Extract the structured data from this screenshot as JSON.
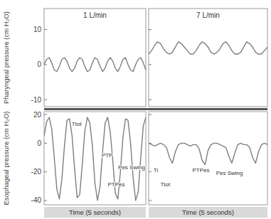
{
  "chart_data": [
    {
      "type": "line",
      "title": "1 L/min",
      "ylabel": "Pharyngeal pressure (cm H₂O)",
      "x": [
        0,
        0.125,
        0.25,
        0.375,
        0.5,
        0.625,
        0.75,
        0.875,
        1,
        1.125,
        1.25,
        1.375,
        1.5,
        1.625,
        1.75,
        1.875,
        2,
        2.125,
        2.25,
        2.375,
        2.5,
        2.625,
        2.75,
        2.875,
        3,
        3.125,
        3.25,
        3.375,
        3.5,
        3.625,
        3.75,
        3.875,
        4,
        4.125,
        4.25,
        4.375,
        4.5,
        4.625,
        4.75,
        4.875,
        5
      ],
      "series": [
        {
          "color": "#7f7f7f",
          "values": [
            0,
            1.5,
            2,
            0.5,
            -1.5,
            -2,
            -0.5,
            1.5,
            2,
            1,
            -1,
            -2,
            -1,
            1,
            2,
            1.5,
            -0.5,
            -2,
            -1.5,
            0.5,
            2,
            1.5,
            -0.5,
            -2,
            -1,
            1,
            2,
            1,
            -1,
            -2,
            -0.5,
            1.5,
            2,
            0,
            -1.5,
            -2,
            0,
            1.5,
            2,
            0.5,
            -1.5
          ]
        }
      ],
      "xlim": [
        0,
        5
      ],
      "ylim": [
        -12,
        16
      ],
      "yticks": [
        -10,
        0,
        10
      ],
      "tick_labels": "y"
    },
    {
      "type": "line",
      "title": "7 L/min",
      "x": [
        0,
        0.125,
        0.25,
        0.375,
        0.5,
        0.625,
        0.75,
        0.875,
        1,
        1.125,
        1.25,
        1.375,
        1.5,
        1.625,
        1.75,
        1.875,
        2,
        2.125,
        2.25,
        2.375,
        2.5,
        2.625,
        2.75,
        2.875,
        3,
        3.125,
        3.25,
        3.375,
        3.5,
        3.625,
        3.75,
        3.875,
        4,
        4.125,
        4.25,
        4.375,
        4.5,
        4.625,
        4.75,
        4.875,
        5
      ],
      "series": [
        {
          "color": "#7f7f7f",
          "values": [
            3,
            4,
            5.5,
            6.5,
            6,
            4.5,
            3.5,
            3,
            3.5,
            5,
            6.5,
            6,
            5,
            4,
            3,
            3,
            4,
            5.5,
            6.5,
            6,
            5,
            3.5,
            3,
            3.5,
            4.5,
            6,
            6.5,
            5.5,
            4,
            3,
            3,
            3.5,
            5,
            6.5,
            6,
            5,
            3.5,
            3,
            3,
            4,
            5
          ]
        }
      ],
      "xlim": [
        0,
        5
      ],
      "ylim": [
        -12,
        16
      ],
      "yticks": [
        -10,
        0,
        10
      ],
      "tick_labels": false
    },
    {
      "type": "line",
      "ylabel": "Esophageal pressure (cm H₂O)",
      "xlabel": "Time (5 seconds)",
      "x": [
        0,
        0.125,
        0.25,
        0.375,
        0.5,
        0.625,
        0.75,
        0.875,
        1,
        1.125,
        1.25,
        1.375,
        1.5,
        1.625,
        1.75,
        1.875,
        2,
        2.125,
        2.25,
        2.375,
        2.5,
        2.625,
        2.75,
        2.875,
        3,
        3.125,
        3.25,
        3.375,
        3.5,
        3.625,
        3.75,
        3.875,
        4,
        4.125,
        4.25,
        4.375,
        4.5,
        4.625,
        4.75,
        4.875,
        5
      ],
      "series": [
        {
          "color": "#7f7f7f",
          "values": [
            5,
            15,
            18,
            10,
            -10,
            -32,
            -39,
            -25,
            -2,
            16,
            17,
            5,
            -18,
            -38,
            -36,
            -15,
            8,
            18,
            14,
            -2,
            -28,
            -40,
            -30,
            -6,
            14,
            18,
            8,
            -12,
            -35,
            -39,
            -20,
            4,
            17,
            16,
            0,
            -24,
            -40,
            -34,
            -10,
            12,
            18
          ]
        }
      ],
      "xlim": [
        0,
        5
      ],
      "ylim": [
        -43,
        22
      ],
      "yticks": [
        -40,
        -20,
        0,
        20
      ],
      "tick_labels": "y",
      "annotations": [
        {
          "text": "Ttot",
          "x": 1.6,
          "y": 12
        },
        {
          "text": "PTP",
          "x": 3.1,
          "y": -10
        },
        {
          "text": "PTPes",
          "x": 3.55,
          "y": -30
        },
        {
          "text": "Pes Swing",
          "x": 4.3,
          "y": -18
        }
      ]
    },
    {
      "type": "line",
      "xlabel": "Time (5 seconds)",
      "x": [
        0,
        0.125,
        0.25,
        0.375,
        0.5,
        0.625,
        0.75,
        0.875,
        1,
        1.125,
        1.25,
        1.375,
        1.5,
        1.625,
        1.75,
        1.875,
        2,
        2.125,
        2.25,
        2.375,
        2.5,
        2.625,
        2.75,
        2.875,
        3,
        3.125,
        3.25,
        3.375,
        3.5,
        3.625,
        3.75,
        3.875,
        4,
        4.125,
        4.25,
        4.375,
        4.5,
        4.625,
        4.75,
        4.875,
        5
      ],
      "series": [
        {
          "color": "#7f7f7f",
          "values": [
            0,
            -1,
            -2,
            -1,
            0,
            -1,
            -3,
            -10,
            -14,
            -6,
            -1,
            0,
            0,
            -1,
            -2,
            -1,
            -1,
            -4,
            -12,
            -15,
            -5,
            -1,
            0,
            0,
            -1,
            -2,
            -3,
            -9,
            -14,
            -7,
            -1,
            0,
            -1,
            -1,
            -3,
            -10,
            -14,
            -6,
            -1,
            0,
            -1
          ]
        }
      ],
      "xlim": [
        0,
        5
      ],
      "ylim": [
        -43,
        22
      ],
      "yticks": [
        -40,
        -20,
        0,
        20
      ],
      "tick_labels": false,
      "annotations": [
        {
          "text": "Ti",
          "x": 0.3,
          "y": -20
        },
        {
          "text": "Ttot",
          "x": 0.7,
          "y": -30
        },
        {
          "text": "PTPes",
          "x": 2.2,
          "y": -20
        },
        {
          "text": "Pes Swing",
          "x": 3.4,
          "y": -22
        }
      ]
    }
  ]
}
